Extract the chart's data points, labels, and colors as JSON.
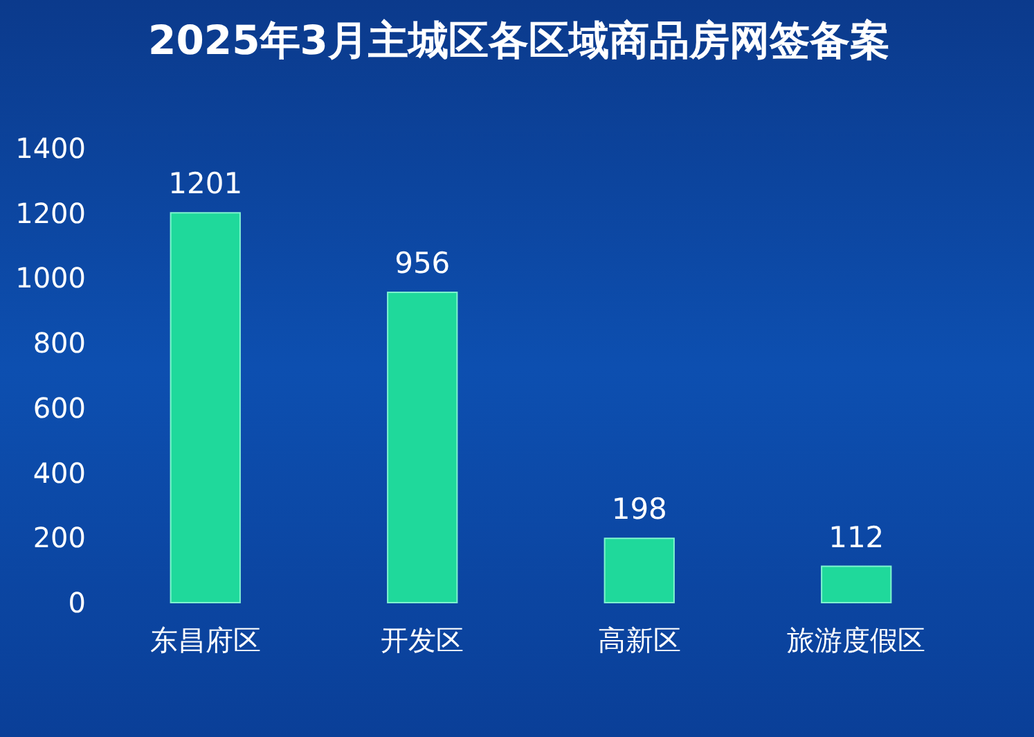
{
  "chart_data": {
    "type": "bar",
    "title": "2025年3月主城区各区域商品房网签备案",
    "categories": [
      "东昌府区",
      "开发区",
      "高新区",
      "旅游度假区"
    ],
    "values": [
      1201,
      956,
      198,
      112
    ],
    "color": "#1fd99b",
    "ylim": [
      0,
      1400
    ],
    "yticks": [
      0,
      200,
      400,
      600,
      800,
      1000,
      1200,
      1400
    ],
    "grid": false,
    "data_labels": true
  }
}
